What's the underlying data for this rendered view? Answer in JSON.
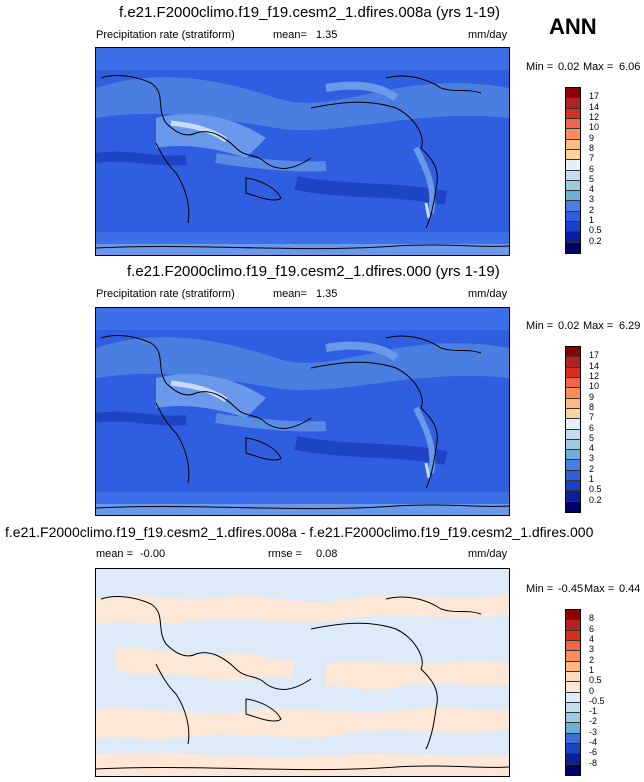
{
  "season": "ANN",
  "panels": [
    {
      "title": "f.e21.F2000climo.f19_f19.cesm2_1.dfires.008a (yrs 1-19)",
      "variable": "Precipitation rate (stratiform)",
      "stat_label": "mean=",
      "stat_value": "1.35",
      "units": "mm/day",
      "min_label": "Min =",
      "min_value": "0.02",
      "max_label": "Max =",
      "max_value": "6.06",
      "colorbar_levels": [
        "17",
        "14",
        "12",
        "10",
        "9",
        "8",
        "7",
        "6",
        "5",
        "4",
        "3",
        "2",
        "1",
        "0.5",
        "0.2"
      ],
      "colorbar_colors": [
        "#8b0000",
        "#b22222",
        "#d7301f",
        "#ef6548",
        "#fc8d59",
        "#fdbb84",
        "#fdd49e",
        "#e6f0fb",
        "#c6dbef",
        "#9ecae1",
        "#6baed6",
        "#4a7ee0",
        "#2c5fd9",
        "#1a3fc8",
        "#0a1f9c",
        "#000066"
      ]
    },
    {
      "title": "f.e21.F2000climo.f19_f19.cesm2_1.dfires.000 (yrs 1-19)",
      "variable": "Precipitation rate (stratiform)",
      "stat_label": "mean=",
      "stat_value": "1.35",
      "units": "mm/day",
      "min_label": "Min =",
      "min_value": "0.02",
      "max_label": "Max =",
      "max_value": "6.29",
      "colorbar_levels": [
        "17",
        "14",
        "12",
        "10",
        "9",
        "8",
        "7",
        "6",
        "5",
        "4",
        "3",
        "2",
        "1",
        "0.5",
        "0.2"
      ],
      "colorbar_colors": [
        "#8b0000",
        "#b22222",
        "#d7301f",
        "#ef6548",
        "#fc8d59",
        "#fdbb84",
        "#fdd49e",
        "#e6f0fb",
        "#c6dbef",
        "#9ecae1",
        "#6baed6",
        "#4a7ee0",
        "#2c5fd9",
        "#1a3fc8",
        "#0a1f9c",
        "#000066"
      ]
    },
    {
      "title": "f.e21.F2000climo.f19_f19.cesm2_1.dfires.008a - f.e21.F2000climo.f19_f19.cesm2_1.dfires.000",
      "stat_label": "mean =",
      "stat_value": "-0.00",
      "rmse_label": "rmse =",
      "rmse_value": "0.08",
      "units": "mm/day",
      "min_label": "Min =",
      "min_value": "-0.45",
      "max_label": "Max =",
      "max_value": "0.44",
      "colorbar_levels": [
        "8",
        "6",
        "4",
        "3",
        "2",
        "1",
        "0.5",
        "0",
        "-0.5",
        "-1",
        "-2",
        "-3",
        "-4",
        "-6",
        "-8"
      ],
      "colorbar_colors": [
        "#8b0000",
        "#b22222",
        "#d7301f",
        "#ef6548",
        "#fc8d59",
        "#fdbb84",
        "#fdd9c0",
        "#fde8d8",
        "#ddeaf8",
        "#c6dbef",
        "#9ecae1",
        "#6baed6",
        "#3b6fd6",
        "#1f45c0",
        "#0a1f9c",
        "#000066"
      ]
    }
  ]
}
